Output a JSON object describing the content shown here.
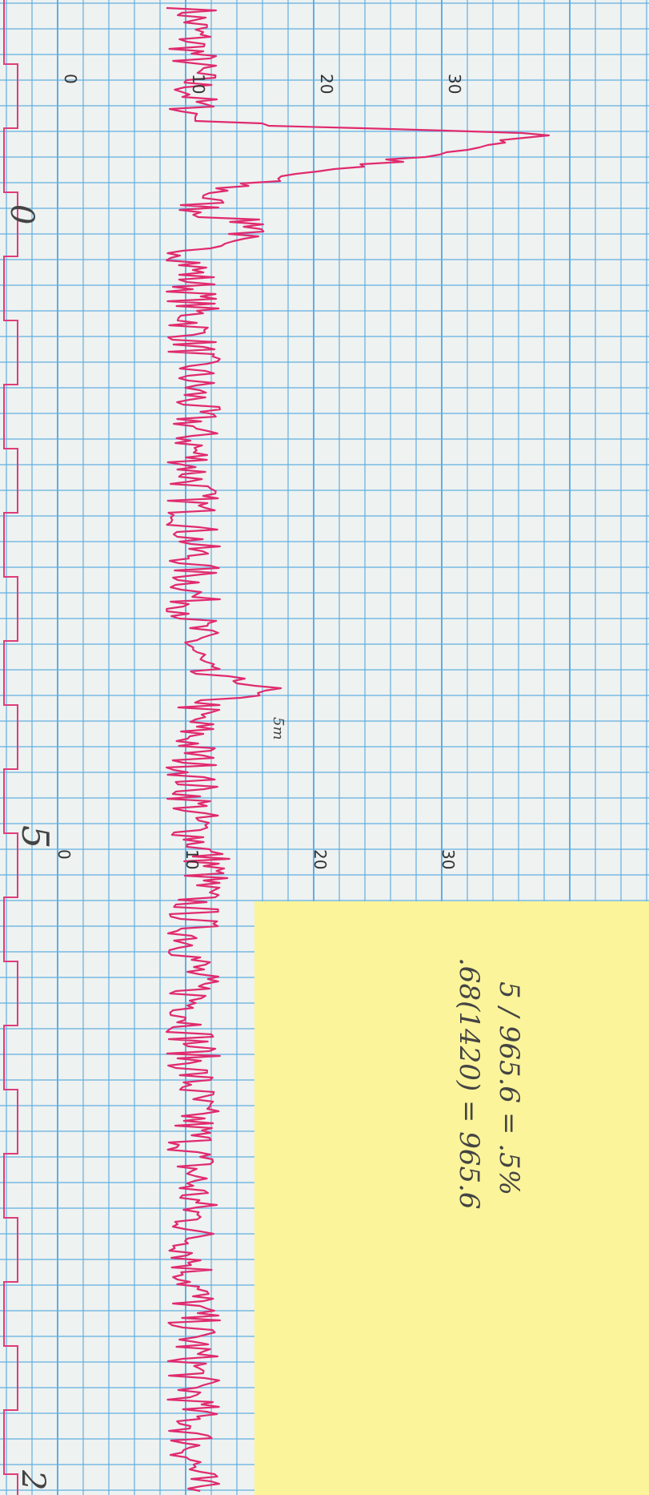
{
  "scale_labels": {
    "top": [
      "0",
      "10",
      "20",
      "30"
    ],
    "bottom": [
      "0",
      "10",
      "20",
      "30"
    ]
  },
  "handwriting": {
    "marks": [
      "0",
      "5",
      "2"
    ],
    "note": "5m"
  },
  "sticky_note": {
    "lines": [
      ".68(1420) = 965.6",
      "5 / 965.6 = .5%"
    ]
  }
}
